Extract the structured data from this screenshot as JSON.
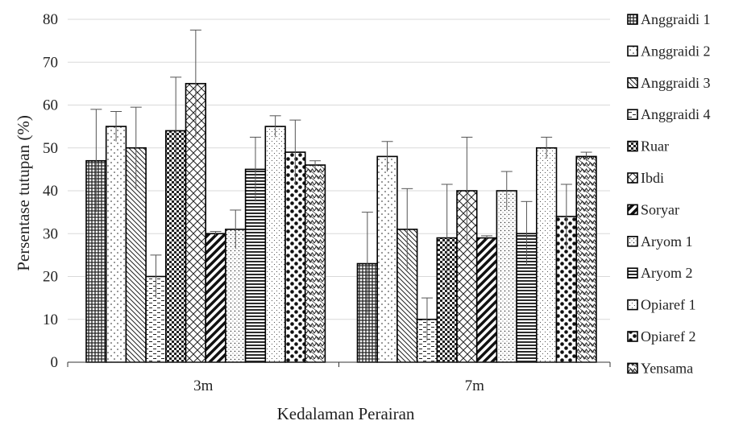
{
  "chart_data": {
    "type": "bar",
    "title": "",
    "xlabel": "Kedalaman Perairan",
    "ylabel": "Persentase tutupan (%)",
    "ylim": [
      0,
      80
    ],
    "yticks": [
      0,
      10,
      20,
      30,
      40,
      50,
      60,
      70,
      80
    ],
    "grid": true,
    "legend_position": "right",
    "categories": [
      "3m",
      "7m"
    ],
    "series": [
      {
        "name": "Anggraidi 1",
        "pattern": "crosshatch",
        "values": [
          47,
          23
        ],
        "errors": [
          12,
          12
        ]
      },
      {
        "name": "Anggraidi 2",
        "pattern": "dots-sparse",
        "values": [
          55,
          48
        ],
        "errors": [
          3.5,
          3.5
        ]
      },
      {
        "name": "Anggraidi 3",
        "pattern": "diag-left",
        "values": [
          50,
          31
        ],
        "errors": [
          9.5,
          9.5
        ]
      },
      {
        "name": "Anggraidi 4",
        "pattern": "dashes",
        "values": [
          20,
          10
        ],
        "errors": [
          5,
          5
        ]
      },
      {
        "name": "Ruar",
        "pattern": "checker",
        "values": [
          54,
          29
        ],
        "errors": [
          12.5,
          12.5
        ]
      },
      {
        "name": "Ibdi",
        "pattern": "diamond",
        "values": [
          65,
          40
        ],
        "errors": [
          12.5,
          12.5
        ]
      },
      {
        "name": "Soryar",
        "pattern": "diag-thick",
        "values": [
          30,
          29
        ],
        "errors": [
          0.5,
          0.5
        ]
      },
      {
        "name": "Aryom 1",
        "pattern": "dots-dense",
        "values": [
          31,
          40
        ],
        "errors": [
          4.5,
          4.5
        ]
      },
      {
        "name": "Aryom 2",
        "pattern": "hlines",
        "values": [
          45,
          30
        ],
        "errors": [
          7.5,
          7.5
        ]
      },
      {
        "name": "Opiaref 1",
        "pattern": "dots-fine",
        "values": [
          55,
          50
        ],
        "errors": [
          2.5,
          2.5
        ]
      },
      {
        "name": "Opiaref 2",
        "pattern": "big-dots",
        "values": [
          49,
          34
        ],
        "errors": [
          7.5,
          7.5
        ]
      },
      {
        "name": "Yensama",
        "pattern": "zigzag",
        "values": [
          46,
          48
        ],
        "errors": [
          1,
          1
        ]
      }
    ]
  }
}
